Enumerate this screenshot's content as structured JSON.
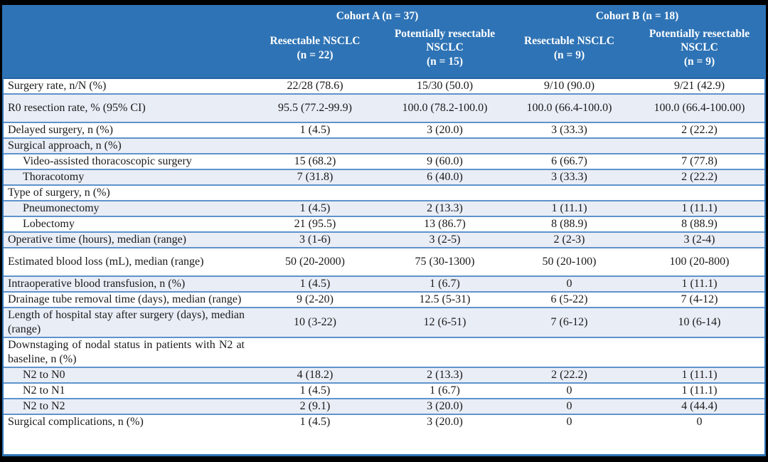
{
  "colors": {
    "header_bg": "#2E73B5",
    "header_text": "#FFFFFF",
    "row_shade": "#E9EDF6",
    "row_border": "#5F93CC",
    "table_border": "#2E73B5",
    "frame": "#000000",
    "body_text": "#1A1A1A"
  },
  "header": {
    "cohort_a": "Cohort A (n = 37)",
    "cohort_b": "Cohort B (n = 18)",
    "columns": [
      {
        "name": "Resectable NSCLC",
        "n": "(n = 22)"
      },
      {
        "name": "Potentially resectable NSCLC",
        "n": "(n = 15)"
      },
      {
        "name": "Resectable NSCLC",
        "n": "(n = 9)"
      },
      {
        "name": "Potentially resectable NSCLC",
        "n": "(n = 9)"
      }
    ]
  },
  "rows": [
    {
      "label": "Surgery rate, n/N (%)",
      "indent": false,
      "tall": false,
      "values": [
        "22/28 (78.6)",
        "15/30 (50.0)",
        "9/10 (90.0)",
        "9/21 (42.9)"
      ]
    },
    {
      "label": "R0 resection rate, % (95% CI)",
      "indent": false,
      "tall": true,
      "values": [
        "95.5 (77.2-99.9)",
        "100.0 (78.2-100.0)",
        "100.0 (66.4-100.0)",
        "100.0 (66.4-100.00)"
      ]
    },
    {
      "label": "Delayed surgery, n (%)",
      "indent": false,
      "tall": false,
      "values": [
        "1 (4.5)",
        "3 (20.0)",
        "3 (33.3)",
        "2 (22.2)"
      ]
    },
    {
      "label": "Surgical approach, n (%)",
      "indent": false,
      "tall": false,
      "values": [
        "",
        "",
        "",
        ""
      ]
    },
    {
      "label": "Video-assisted thoracoscopic surgery",
      "indent": true,
      "tall": false,
      "values": [
        "15 (68.2)",
        "9 (60.0)",
        "6 (66.7)",
        "7 (77.8)"
      ]
    },
    {
      "label": "Thoracotomy",
      "indent": true,
      "tall": false,
      "values": [
        "7 (31.8)",
        "6 (40.0)",
        "3 (33.3)",
        "2 (22.2)"
      ]
    },
    {
      "label": "Type of surgery, n (%)",
      "indent": false,
      "tall": false,
      "values": [
        "",
        "",
        "",
        ""
      ]
    },
    {
      "label": "Pneumonectomy",
      "indent": true,
      "tall": false,
      "values": [
        "1 (4.5)",
        "2 (13.3)",
        "1 (11.1)",
        "1 (11.1)"
      ]
    },
    {
      "label": "Lobectomy",
      "indent": true,
      "tall": false,
      "values": [
        "21 (95.5)",
        "13 (86.7)",
        "8 (88.9)",
        "8 (88.9)"
      ]
    },
    {
      "label": "Operative time (hours), median (range)",
      "indent": false,
      "tall": false,
      "values": [
        "3 (1-6)",
        "3 (2-5)",
        "2 (2-3)",
        "3 (2-4)"
      ]
    },
    {
      "label": "Estimated blood loss (mL), median (range)",
      "indent": false,
      "tall": true,
      "values": [
        "50 (20-2000)",
        "75 (30-1300)",
        "50 (20-100)",
        "100 (20-800)"
      ]
    },
    {
      "label": "Intraoperative blood transfusion, n (%)",
      "indent": false,
      "tall": false,
      "values": [
        "1 (4.5)",
        "1 (6.7)",
        "0",
        "1 (11.1)"
      ]
    },
    {
      "label": "Drainage tube removal time (days), median (range)",
      "indent": false,
      "tall": false,
      "values": [
        "9 (2-20)",
        "12.5 (5-31)",
        "6 (5-22)",
        "7 (4-12)"
      ]
    },
    {
      "label": "Length of hospital stay after surgery (days), median (range)",
      "indent": false,
      "tall": false,
      "values": [
        "10 (3-22)",
        "12 (6-51)",
        "7 (6-12)",
        "10 (6-14)"
      ]
    },
    {
      "label": "Downstaging of nodal status in patients with N2 at baseline, n (%)",
      "indent": false,
      "tall": false,
      "values": [
        "",
        "",
        "",
        ""
      ]
    },
    {
      "label": "N2 to N0",
      "indent": true,
      "tall": false,
      "values": [
        "4 (18.2)",
        "2 (13.3)",
        "2 (22.2)",
        "1 (11.1)"
      ]
    },
    {
      "label": "N2 to N1",
      "indent": true,
      "tall": false,
      "values": [
        "1 (4.5)",
        "1 (6.7)",
        "0",
        "1 (11.1)"
      ]
    },
    {
      "label": "N2 to N2",
      "indent": true,
      "tall": false,
      "values": [
        "2 (9.1)",
        "3 (20.0)",
        "0",
        "4 (44.4)"
      ]
    },
    {
      "label": "Surgical complications, n (%)",
      "indent": false,
      "tall": false,
      "values": [
        "1 (4.5)",
        "3 (20.0)",
        "0",
        "0"
      ]
    }
  ]
}
